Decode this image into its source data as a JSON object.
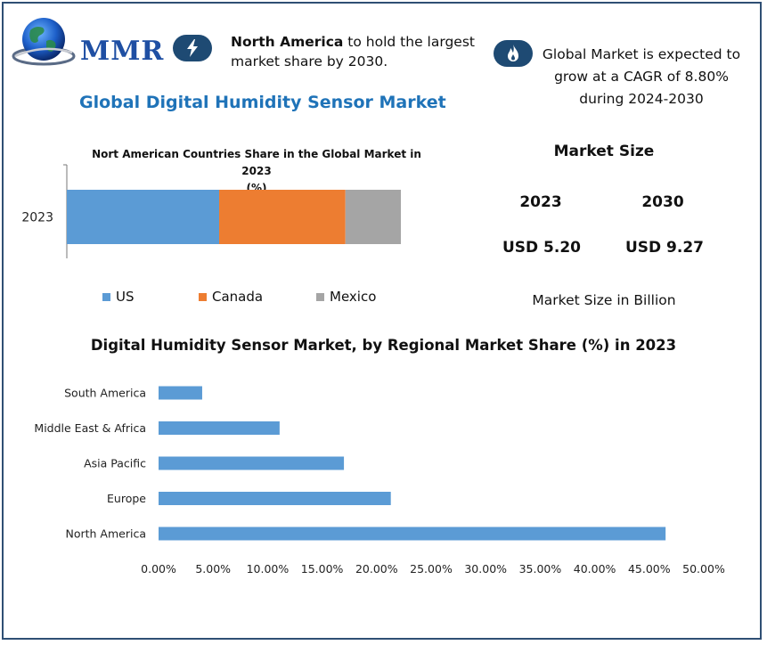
{
  "header": {
    "logo_text": "MMR",
    "info_left": {
      "bold": "North America",
      "rest": " to hold the largest",
      "line2": "market share by 2030."
    },
    "info_right": {
      "line1": "Global Market is expected to",
      "line2": "grow at a CAGR of 8.80%",
      "line3": "during 2024-2030"
    }
  },
  "title": "Global Digital Humidity Sensor Market",
  "market_size": {
    "heading": "Market Size",
    "years": [
      "2023",
      "2030"
    ],
    "values": [
      "USD 5.20",
      "USD 9.27"
    ],
    "note": "Market Size in Billion"
  },
  "colors": {
    "us": "#5b9bd5",
    "canada": "#ed7d31",
    "mexico": "#a5a5a5",
    "bars": "#5b9bd5",
    "title_blue": "#1f73b8",
    "icon_bg": "#1e4a73",
    "frame": "#2f4f74"
  },
  "chart_data": [
    {
      "type": "bar",
      "orientation": "horizontal",
      "stacked": true,
      "title": "Nort American Countries Share in the Global Market in 2023 (%)",
      "title_line1": "Nort American Countries Share in the Global Market in 2023",
      "title_line2": "(%)",
      "categories": [
        "2023"
      ],
      "series": [
        {
          "name": "US",
          "values": [
            45.6
          ]
        },
        {
          "name": "Canada",
          "values": [
            37.8
          ]
        },
        {
          "name": "Mexico",
          "values": [
            16.6
          ]
        }
      ],
      "legend": "bottom"
    },
    {
      "type": "bar",
      "orientation": "horizontal",
      "title": "Digital Humidity Sensor Market, by Regional Market Share (%) in 2023",
      "categories": [
        "South America",
        "Middle East & Africa",
        "Asia Pacific",
        "Europe",
        "North America"
      ],
      "values": [
        4.0,
        11.1,
        17.0,
        21.3,
        46.5
      ],
      "xlim": [
        0,
        50
      ],
      "xticks": [
        "0.00%",
        "5.00%",
        "10.00%",
        "15.00%",
        "20.00%",
        "25.00%",
        "30.00%",
        "35.00%",
        "40.00%",
        "45.00%",
        "50.00%"
      ],
      "grid": false
    }
  ]
}
